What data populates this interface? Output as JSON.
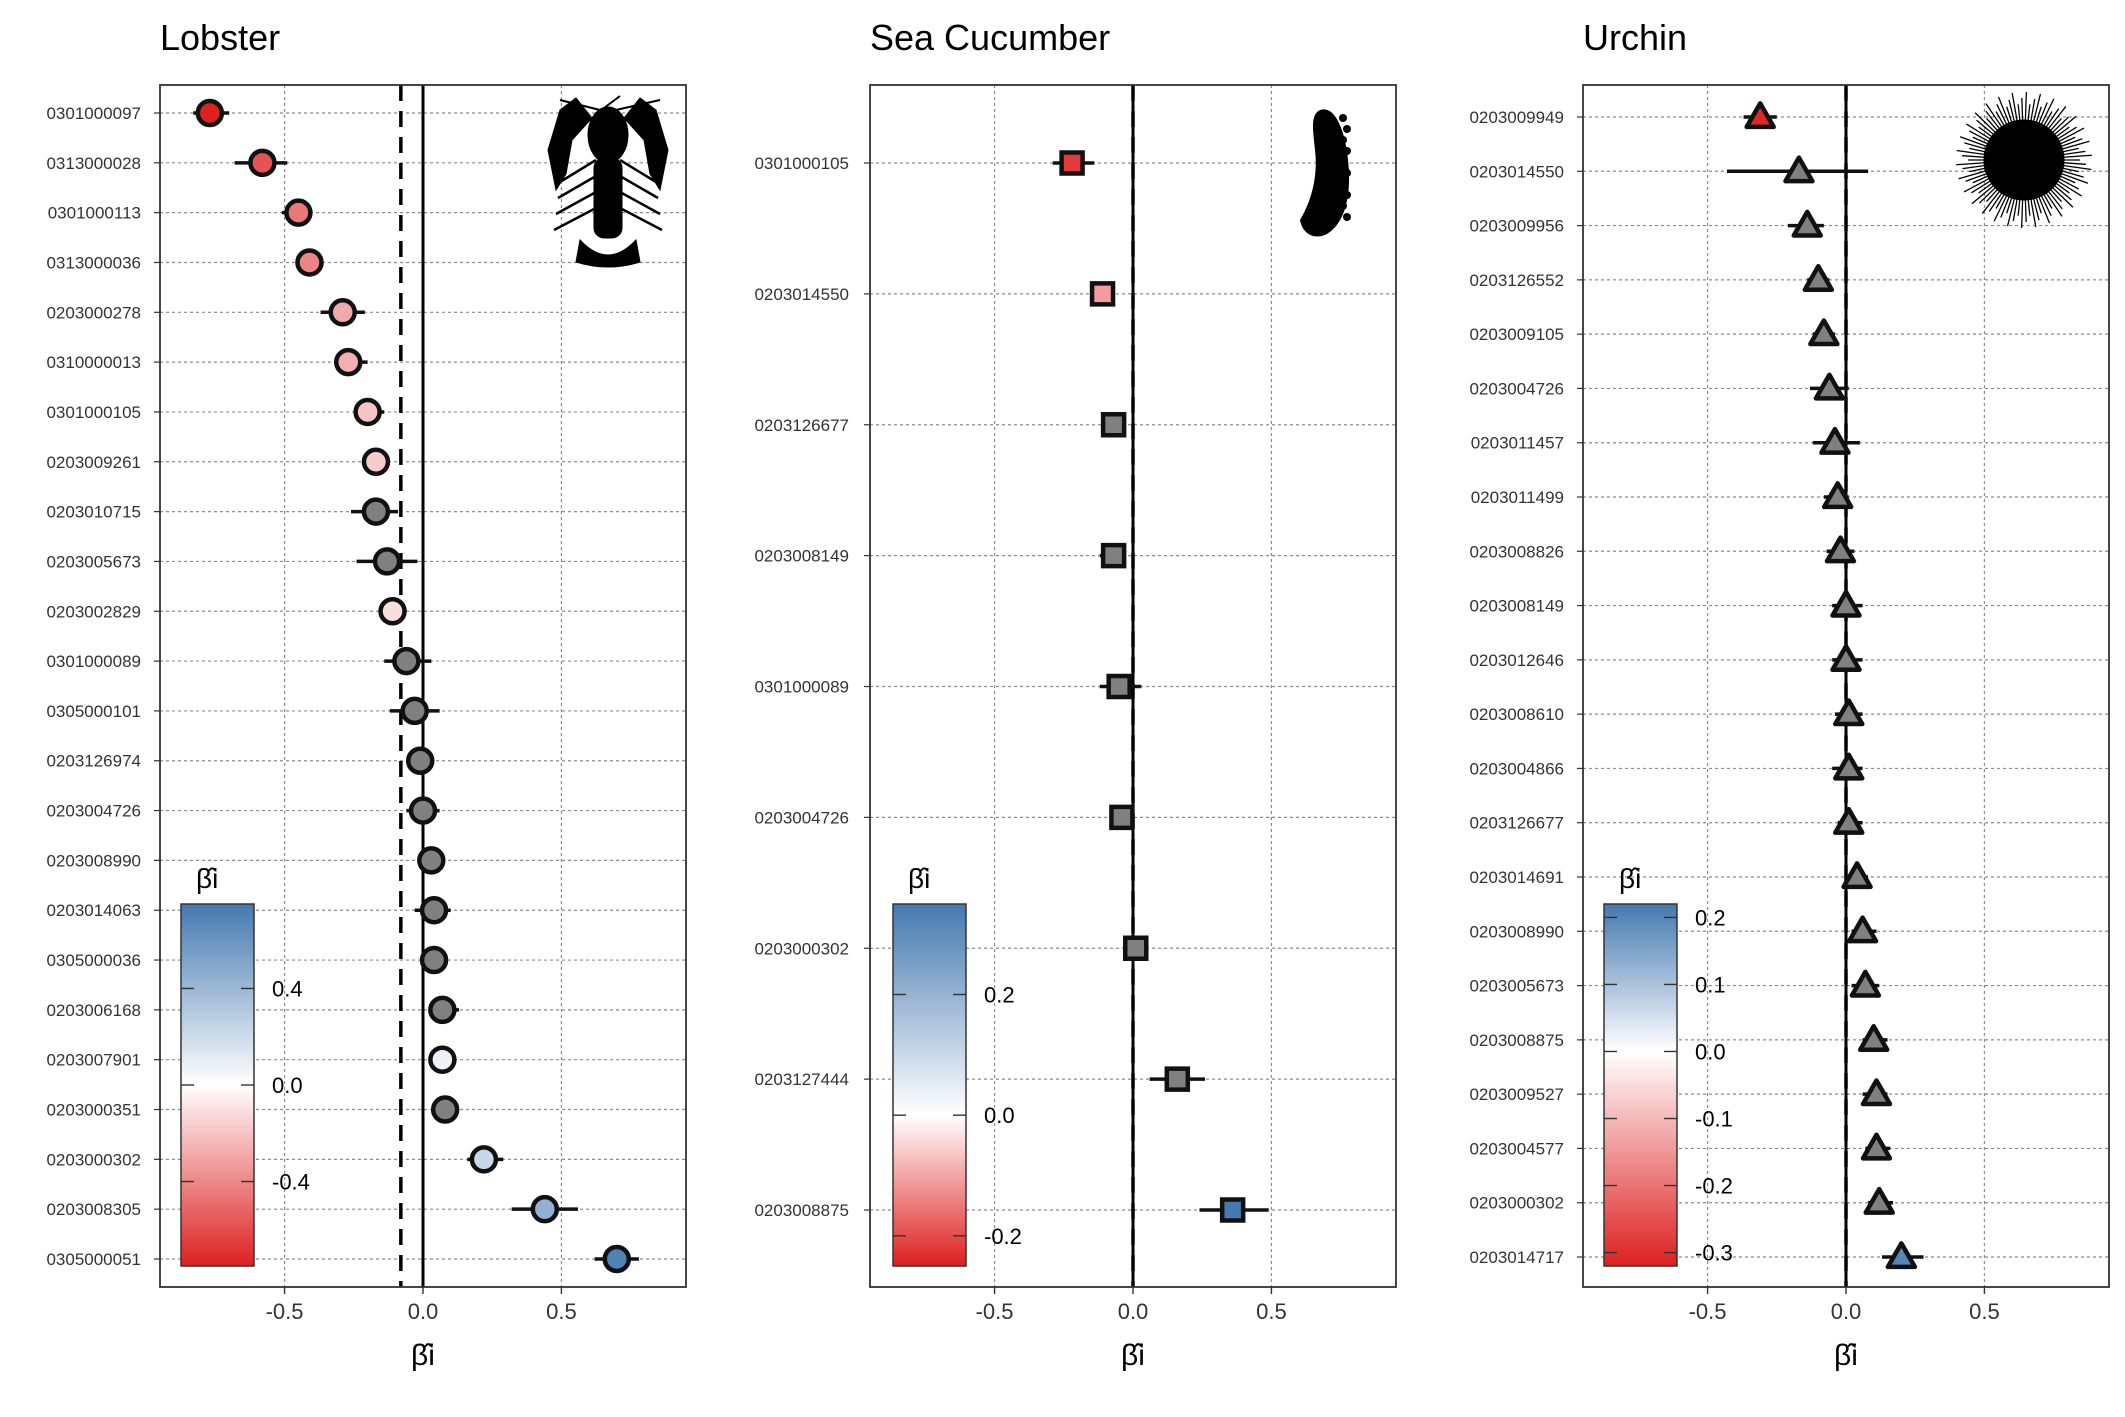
{
  "colors": {
    "neg_end": "#dd2020",
    "mid": "#ffffff",
    "pos_end": "#4579b0",
    "insignificant": "#808080",
    "grid": "#8c8c8c",
    "frame": "#333333"
  },
  "chart_data": [
    {
      "type": "scatter",
      "title": "Lobster",
      "marker": "circle",
      "icon": "lobster-silhouette-icon",
      "xlabel": "β̂i",
      "xlim": [
        -0.95,
        0.95
      ],
      "xticks": [
        -0.5,
        0.0,
        0.5
      ],
      "xtick_labels": [
        "-0.5",
        "0.0",
        "0.5"
      ],
      "grid": true,
      "ref_line_solid": 0.0,
      "ref_line_dashed": -0.08,
      "legend": {
        "title": "β̂i",
        "placement": "bottom-left",
        "range": [
          -0.75,
          0.75
        ],
        "ticks": [
          -0.4,
          0.0,
          0.4
        ],
        "tick_labels": [
          "-0.4",
          "0.0",
          "0.4"
        ]
      },
      "points": [
        {
          "label": "0301000097",
          "estimate": -0.77,
          "lo": -0.83,
          "hi": -0.7,
          "significant": true
        },
        {
          "label": "0313000028",
          "estimate": -0.58,
          "lo": -0.68,
          "hi": -0.49,
          "significant": true
        },
        {
          "label": "0301000113",
          "estimate": -0.45,
          "lo": -0.51,
          "hi": -0.4,
          "significant": true
        },
        {
          "label": "0313000036",
          "estimate": -0.41,
          "lo": -0.45,
          "hi": -0.36,
          "significant": true
        },
        {
          "label": "0203000278",
          "estimate": -0.29,
          "lo": -0.37,
          "hi": -0.21,
          "significant": true
        },
        {
          "label": "0310000013",
          "estimate": -0.27,
          "lo": -0.32,
          "hi": -0.2,
          "significant": true
        },
        {
          "label": "0301000105",
          "estimate": -0.2,
          "lo": -0.25,
          "hi": -0.14,
          "significant": true
        },
        {
          "label": "0203009261",
          "estimate": -0.17,
          "lo": -0.22,
          "hi": -0.12,
          "significant": true
        },
        {
          "label": "0203010715",
          "estimate": -0.17,
          "lo": -0.26,
          "hi": -0.09,
          "significant": false
        },
        {
          "label": "0203005673",
          "estimate": -0.13,
          "lo": -0.24,
          "hi": -0.02,
          "significant": false
        },
        {
          "label": "0203002829",
          "estimate": -0.11,
          "lo": -0.13,
          "hi": -0.09,
          "significant": true
        },
        {
          "label": "0301000089",
          "estimate": -0.06,
          "lo": -0.14,
          "hi": 0.03,
          "significant": false
        },
        {
          "label": "0305000101",
          "estimate": -0.03,
          "lo": -0.12,
          "hi": 0.06,
          "significant": false
        },
        {
          "label": "0203126974",
          "estimate": -0.01,
          "lo": -0.06,
          "hi": 0.04,
          "significant": false
        },
        {
          "label": "0203004726",
          "estimate": 0.0,
          "lo": -0.06,
          "hi": 0.06,
          "significant": false
        },
        {
          "label": "0203008990",
          "estimate": 0.03,
          "lo": -0.02,
          "hi": 0.07,
          "significant": false
        },
        {
          "label": "0203014063",
          "estimate": 0.04,
          "lo": -0.03,
          "hi": 0.1,
          "significant": false
        },
        {
          "label": "0305000036",
          "estimate": 0.04,
          "lo": -0.01,
          "hi": 0.08,
          "significant": false
        },
        {
          "label": "0203006168",
          "estimate": 0.07,
          "lo": 0.02,
          "hi": 0.13,
          "significant": false
        },
        {
          "label": "0203007901",
          "estimate": 0.07,
          "lo": 0.05,
          "hi": 0.09,
          "significant": true
        },
        {
          "label": "0203000351",
          "estimate": 0.08,
          "lo": 0.06,
          "hi": 0.11,
          "significant": false
        },
        {
          "label": "0203000302",
          "estimate": 0.22,
          "lo": 0.16,
          "hi": 0.29,
          "significant": true
        },
        {
          "label": "0203008305",
          "estimate": 0.44,
          "lo": 0.32,
          "hi": 0.56,
          "significant": true
        },
        {
          "label": "0305000051",
          "estimate": 0.7,
          "lo": 0.62,
          "hi": 0.78,
          "significant": true
        }
      ]
    },
    {
      "type": "scatter",
      "title": "Sea Cucumber",
      "marker": "square",
      "icon": "sea-cucumber-silhouette-icon",
      "xlabel": "β̂i",
      "xlim": [
        -0.95,
        0.95
      ],
      "xticks": [
        -0.5,
        0.0,
        0.5
      ],
      "xtick_labels": [
        "-0.5",
        "0.0",
        "0.5"
      ],
      "grid": true,
      "ref_line_solid": 0.0,
      "ref_line_dashed": 0.0,
      "legend": {
        "title": "β̂i",
        "placement": "bottom-left",
        "range": [
          -0.25,
          0.35
        ],
        "ticks": [
          -0.2,
          0.0,
          0.2
        ],
        "tick_labels": [
          "-0.2",
          "0.0",
          "0.2"
        ]
      },
      "points": [
        {
          "label": "0301000105",
          "estimate": -0.22,
          "lo": -0.29,
          "hi": -0.14,
          "significant": true
        },
        {
          "label": "0203014550",
          "estimate": -0.11,
          "lo": -0.13,
          "hi": -0.09,
          "significant": true
        },
        {
          "label": "0203126677",
          "estimate": -0.07,
          "lo": -0.1,
          "hi": -0.05,
          "significant": false
        },
        {
          "label": "0203008149",
          "estimate": -0.07,
          "lo": -0.12,
          "hi": -0.03,
          "significant": false
        },
        {
          "label": "0301000089",
          "estimate": -0.05,
          "lo": -0.12,
          "hi": 0.03,
          "significant": false
        },
        {
          "label": "0203004726",
          "estimate": -0.04,
          "lo": -0.08,
          "hi": -0.01,
          "significant": false
        },
        {
          "label": "0203000302",
          "estimate": 0.01,
          "lo": -0.02,
          "hi": 0.04,
          "significant": false
        },
        {
          "label": "0203127444",
          "estimate": 0.16,
          "lo": 0.06,
          "hi": 0.26,
          "significant": false
        },
        {
          "label": "0203008875",
          "estimate": 0.36,
          "lo": 0.24,
          "hi": 0.49,
          "significant": true
        }
      ]
    },
    {
      "type": "scatter",
      "title": "Urchin",
      "marker": "triangle",
      "icon": "urchin-silhouette-icon",
      "xlabel": "β̂i",
      "xlim": [
        -0.95,
        0.95
      ],
      "xticks": [
        -0.5,
        0.0,
        0.5
      ],
      "xtick_labels": [
        "-0.5",
        "0.0",
        "0.5"
      ],
      "grid": true,
      "ref_line_solid": 0.0,
      "ref_line_dashed": 0.0,
      "legend": {
        "title": "β̂i",
        "placement": "bottom-left",
        "range": [
          -0.32,
          0.22
        ],
        "ticks": [
          -0.3,
          -0.2,
          -0.1,
          0.0,
          0.1,
          0.2
        ],
        "tick_labels": [
          "-0.3",
          "-0.2",
          "-0.1",
          "0.0",
          "0.1",
          "0.2"
        ]
      },
      "points": [
        {
          "label": "0203009949",
          "estimate": -0.31,
          "lo": -0.37,
          "hi": -0.25,
          "significant": true
        },
        {
          "label": "0203014550",
          "estimate": -0.17,
          "lo": -0.43,
          "hi": 0.08,
          "significant": false
        },
        {
          "label": "0203009956",
          "estimate": -0.14,
          "lo": -0.21,
          "hi": -0.08,
          "significant": false
        },
        {
          "label": "0203126552",
          "estimate": -0.1,
          "lo": -0.14,
          "hi": -0.06,
          "significant": false
        },
        {
          "label": "0203009105",
          "estimate": -0.08,
          "lo": -0.12,
          "hi": -0.04,
          "significant": false
        },
        {
          "label": "0203004726",
          "estimate": -0.06,
          "lo": -0.13,
          "hi": 0.01,
          "significant": false
        },
        {
          "label": "0203011457",
          "estimate": -0.04,
          "lo": -0.12,
          "hi": 0.05,
          "significant": false
        },
        {
          "label": "0203011499",
          "estimate": -0.03,
          "lo": -0.08,
          "hi": 0.01,
          "significant": false
        },
        {
          "label": "0203008826",
          "estimate": -0.02,
          "lo": -0.07,
          "hi": 0.03,
          "significant": false
        },
        {
          "label": "0203008149",
          "estimate": 0.0,
          "lo": -0.05,
          "hi": 0.06,
          "significant": false
        },
        {
          "label": "0203012646",
          "estimate": 0.0,
          "lo": -0.05,
          "hi": 0.06,
          "significant": false
        },
        {
          "label": "0203008610",
          "estimate": 0.01,
          "lo": -0.04,
          "hi": 0.06,
          "significant": false
        },
        {
          "label": "0203004866",
          "estimate": 0.01,
          "lo": -0.05,
          "hi": 0.06,
          "significant": false
        },
        {
          "label": "0203126677",
          "estimate": 0.01,
          "lo": -0.03,
          "hi": 0.06,
          "significant": false
        },
        {
          "label": "0203014691",
          "estimate": 0.04,
          "lo": 0.0,
          "hi": 0.08,
          "significant": false
        },
        {
          "label": "0203008990",
          "estimate": 0.06,
          "lo": 0.02,
          "hi": 0.11,
          "significant": false
        },
        {
          "label": "0203005673",
          "estimate": 0.07,
          "lo": 0.02,
          "hi": 0.12,
          "significant": false
        },
        {
          "label": "0203008875",
          "estimate": 0.1,
          "lo": 0.06,
          "hi": 0.15,
          "significant": false
        },
        {
          "label": "0203009527",
          "estimate": 0.11,
          "lo": 0.06,
          "hi": 0.15,
          "significant": false
        },
        {
          "label": "0203004577",
          "estimate": 0.11,
          "lo": 0.07,
          "hi": 0.16,
          "significant": false
        },
        {
          "label": "0203000302",
          "estimate": 0.12,
          "lo": 0.08,
          "hi": 0.17,
          "significant": false
        },
        {
          "label": "0203014717",
          "estimate": 0.2,
          "lo": 0.13,
          "hi": 0.28,
          "significant": true
        }
      ]
    }
  ]
}
